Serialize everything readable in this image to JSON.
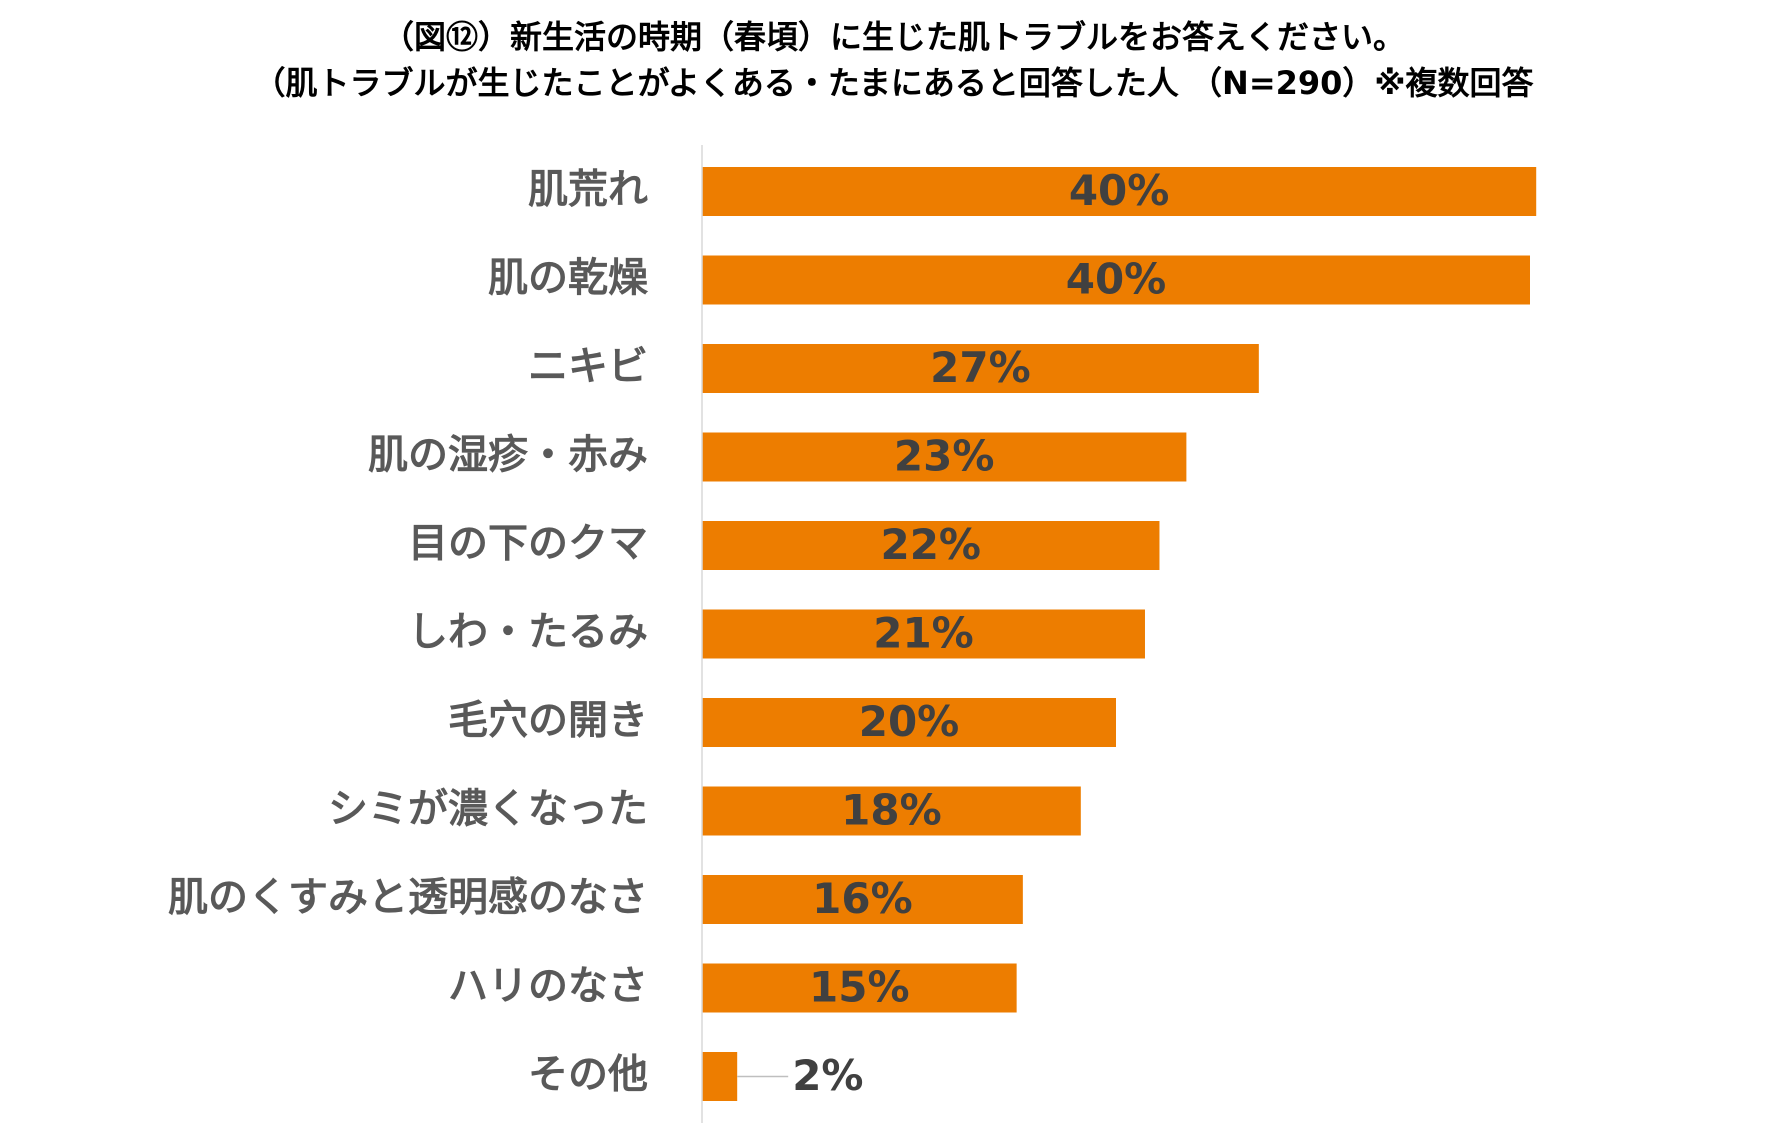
{
  "chart_data": {
    "type": "bar",
    "orientation": "horizontal",
    "title": "（図⑫）新生活の時期（春頃）に生じた肌トラブルをお答えください。",
    "subtitle": "（肌トラブルが生じたことがよくある・たまにあると回答した人 （N=290）※複数回答",
    "categories": [
      "肌荒れ",
      "肌の乾燥",
      "ニキビ",
      "肌の湿疹・赤み",
      "目の下のクマ",
      "しわ・たるみ",
      "毛穴の開き",
      "シミが濃くなった",
      "肌のくすみと透明感のなさ",
      "ハリのなさ",
      "その他"
    ],
    "values": [
      40.3,
      40.0,
      26.9,
      23.4,
      22.1,
      21.4,
      20.0,
      18.3,
      15.5,
      15.2,
      1.7
    ],
    "value_labels": [
      "40%",
      "40%",
      "27%",
      "23%",
      "22%",
      "21%",
      "20%",
      "18%",
      "16%",
      "15%",
      "2%"
    ],
    "xlim": [
      0,
      47
    ],
    "grid": false,
    "bar_color": "#ED7D00"
  }
}
